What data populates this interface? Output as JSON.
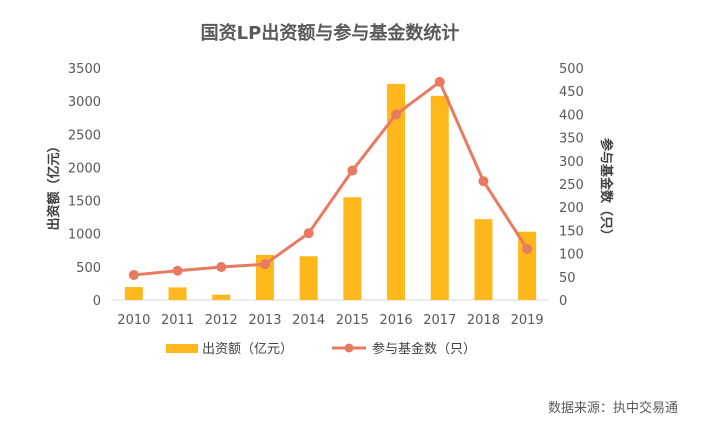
{
  "chart_data": {
    "type": "bar+line",
    "title": "国资LP出资额与参与基金数统计",
    "categories": [
      "2010",
      "2011",
      "2012",
      "2013",
      "2014",
      "2015",
      "2016",
      "2017",
      "2018",
      "2019"
    ],
    "series": [
      {
        "name": "出资额（亿元）",
        "type": "bar",
        "axis": "left",
        "color": "#FFB81C",
        "values": [
          195,
          190,
          80,
          680,
          660,
          1550,
          3260,
          3080,
          1220,
          1030
        ]
      },
      {
        "name": "参与基金数（只）",
        "type": "line",
        "axis": "right",
        "color": "#E97A61",
        "values": [
          54,
          63,
          71,
          77,
          144,
          279,
          400,
          470,
          256,
          110
        ]
      }
    ],
    "y_left": {
      "label": "出资额（亿元）",
      "min": 0,
      "max": 3500,
      "ticks": [
        "0",
        "500",
        "1000",
        "1500",
        "2000",
        "2500",
        "3000",
        "3500"
      ]
    },
    "y_right": {
      "label": "参与基金数（只）",
      "min": 0,
      "max": 500,
      "ticks": [
        "0",
        "50",
        "100",
        "150",
        "200",
        "250",
        "300",
        "350",
        "400",
        "450",
        "500"
      ]
    },
    "grid": false,
    "legend": "bottom"
  },
  "source": "数据来源：执中交易通"
}
